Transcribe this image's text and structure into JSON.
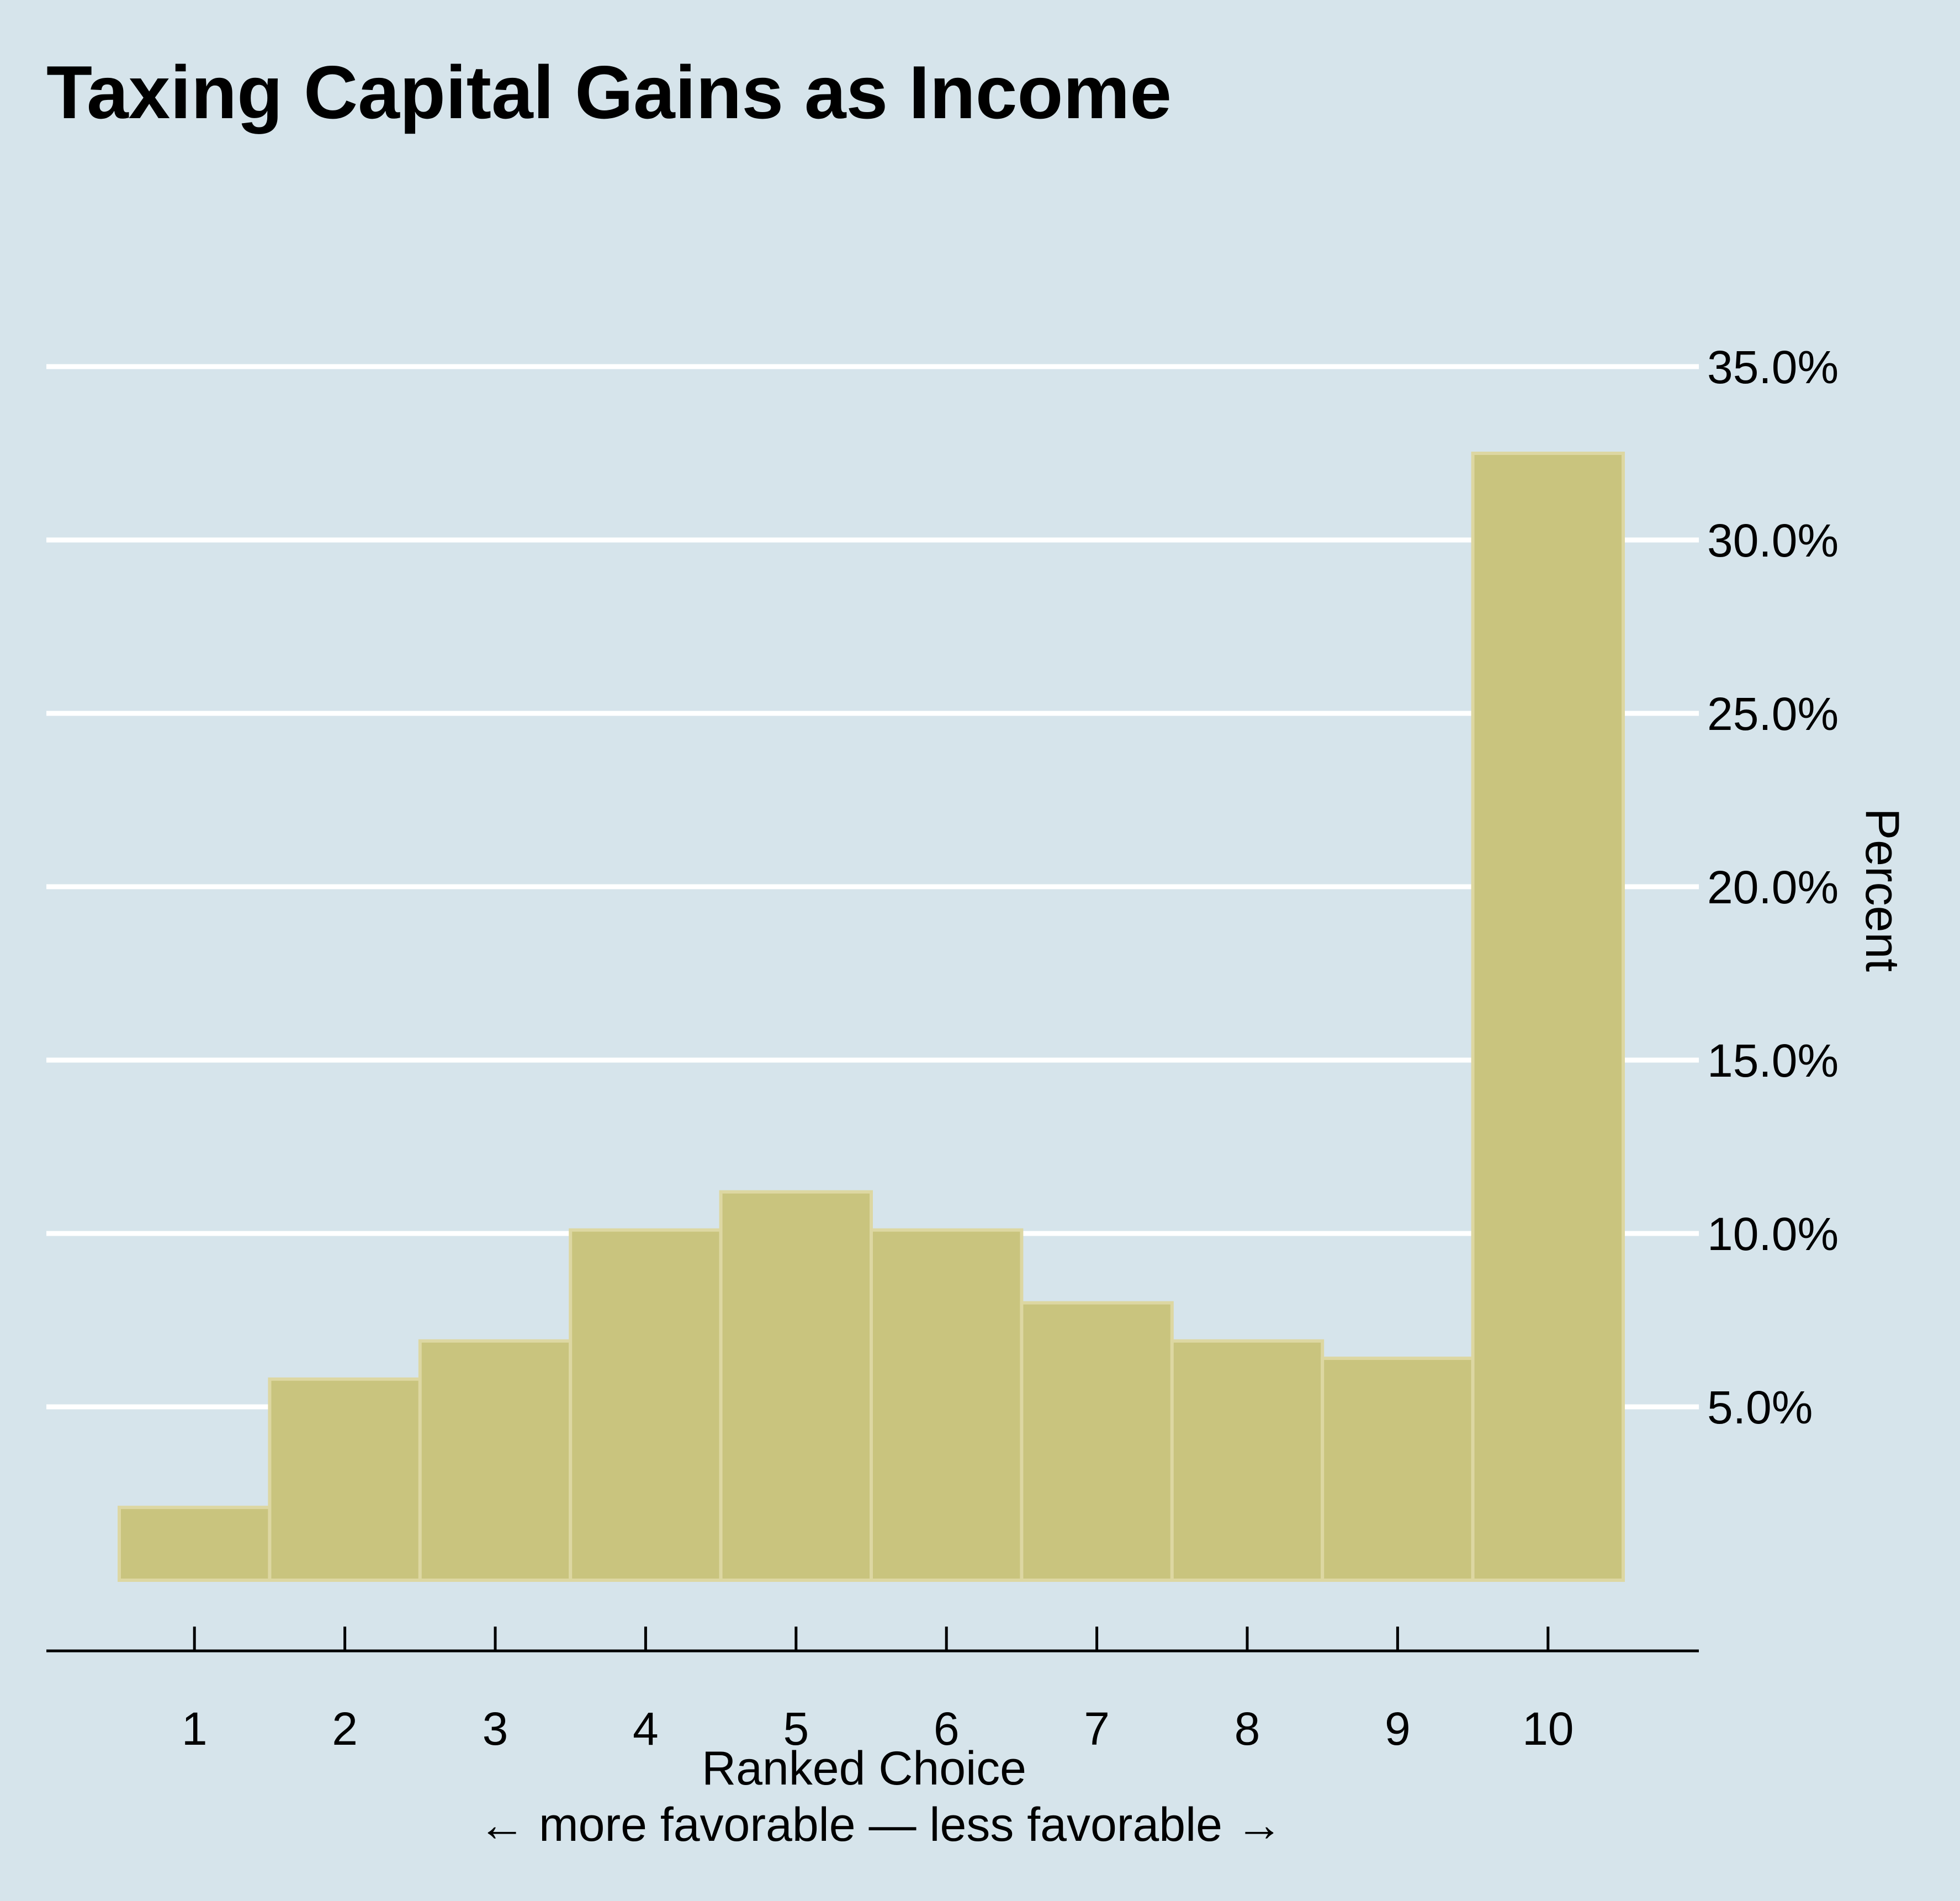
{
  "chart_data": {
    "type": "bar",
    "title": "Taxing Capital Gains as Income",
    "xlabel": "Ranked Choice",
    "xlabel_note": "← more favorable — less favorable →",
    "ylabel": "Percent",
    "categories": [
      "1",
      "2",
      "3",
      "4",
      "5",
      "6",
      "7",
      "8",
      "9",
      "10"
    ],
    "values": [
      2.1,
      5.8,
      6.9,
      10.1,
      11.2,
      10.1,
      8.0,
      6.9,
      6.4,
      32.5
    ],
    "ylim": [
      0,
      35
    ],
    "yticks": [
      5,
      10,
      15,
      20,
      25,
      30,
      35
    ],
    "ytick_labels": [
      "5.0%",
      "10.0%",
      "15.0%",
      "20.0%",
      "25.0%",
      "30.0%",
      "35.0%"
    ],
    "y_axis_position": "right",
    "grid": true,
    "legend": false,
    "colors": {
      "background": "#d6e4eb",
      "bar_fill": "#c9c47e",
      "bar_edge": "#ddd7a2",
      "gridline": "#ffffff",
      "axis": "#000000"
    }
  }
}
